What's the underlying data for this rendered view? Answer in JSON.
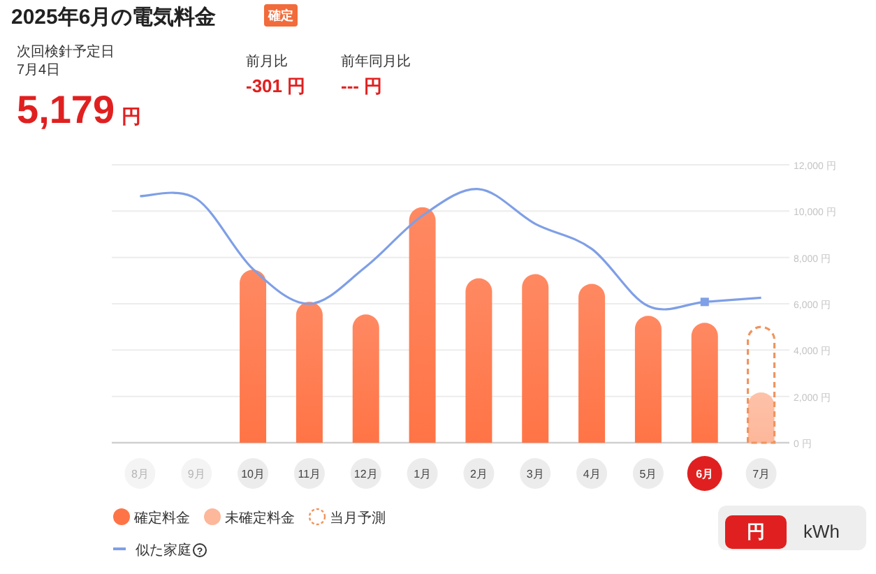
{
  "chart_data": {
    "type": "bar",
    "title": "2025年6月の電気料金",
    "categories": [
      "8月",
      "9月",
      "10月",
      "11月",
      "12月",
      "1月",
      "2月",
      "3月",
      "4月",
      "5月",
      "6月",
      "7月"
    ],
    "series": [
      {
        "name": "確定料金",
        "color": "#ff7446",
        "values": [
          null,
          null,
          7470,
          6080,
          5540,
          10170,
          7100,
          7280,
          6860,
          5480,
          5179,
          null
        ]
      },
      {
        "name": "未確定料金",
        "color": "#fdb79a",
        "values": [
          null,
          null,
          null,
          null,
          null,
          null,
          null,
          null,
          null,
          null,
          null,
          2170
        ]
      },
      {
        "name": "当月予測",
        "color": "#f0945e",
        "line_style": "dashed",
        "values": [
          null,
          null,
          null,
          null,
          null,
          null,
          null,
          null,
          null,
          null,
          null,
          5000
        ]
      },
      {
        "name": "似た家庭",
        "type": "line",
        "color": "#7f9fe6",
        "values": [
          10650,
          10530,
          7500,
          6000,
          7600,
          9800,
          10950,
          9450,
          8370,
          5900,
          6080,
          6260
        ]
      },
      {
        "type": "scatter",
        "marker": "square",
        "color": "#7f9fe6",
        "values": [
          null,
          null,
          null,
          null,
          null,
          null,
          null,
          null,
          null,
          null,
          6080,
          null
        ]
      }
    ],
    "ylim": [
      0,
      12000
    ],
    "yticks": [
      {
        "value": 0,
        "label": "0 円"
      },
      {
        "value": 2000,
        "label": "2,000 円"
      },
      {
        "value": 4000,
        "label": "4,000 円"
      },
      {
        "value": 6000,
        "label": "6,000 円"
      },
      {
        "value": 8000,
        "label": "8,000 円"
      },
      {
        "value": 10000,
        "label": "10,000 円"
      },
      {
        "value": 12000,
        "label": "12,000 円"
      }
    ],
    "grid": "y",
    "legend": "bottom",
    "annotations": [
      "確定",
      "次回検針予定日",
      "7月4日",
      "5,179",
      "円",
      "前月比",
      "-301 円",
      "前年同月比",
      "--- 円",
      "円",
      "kWh",
      "?"
    ]
  }
}
